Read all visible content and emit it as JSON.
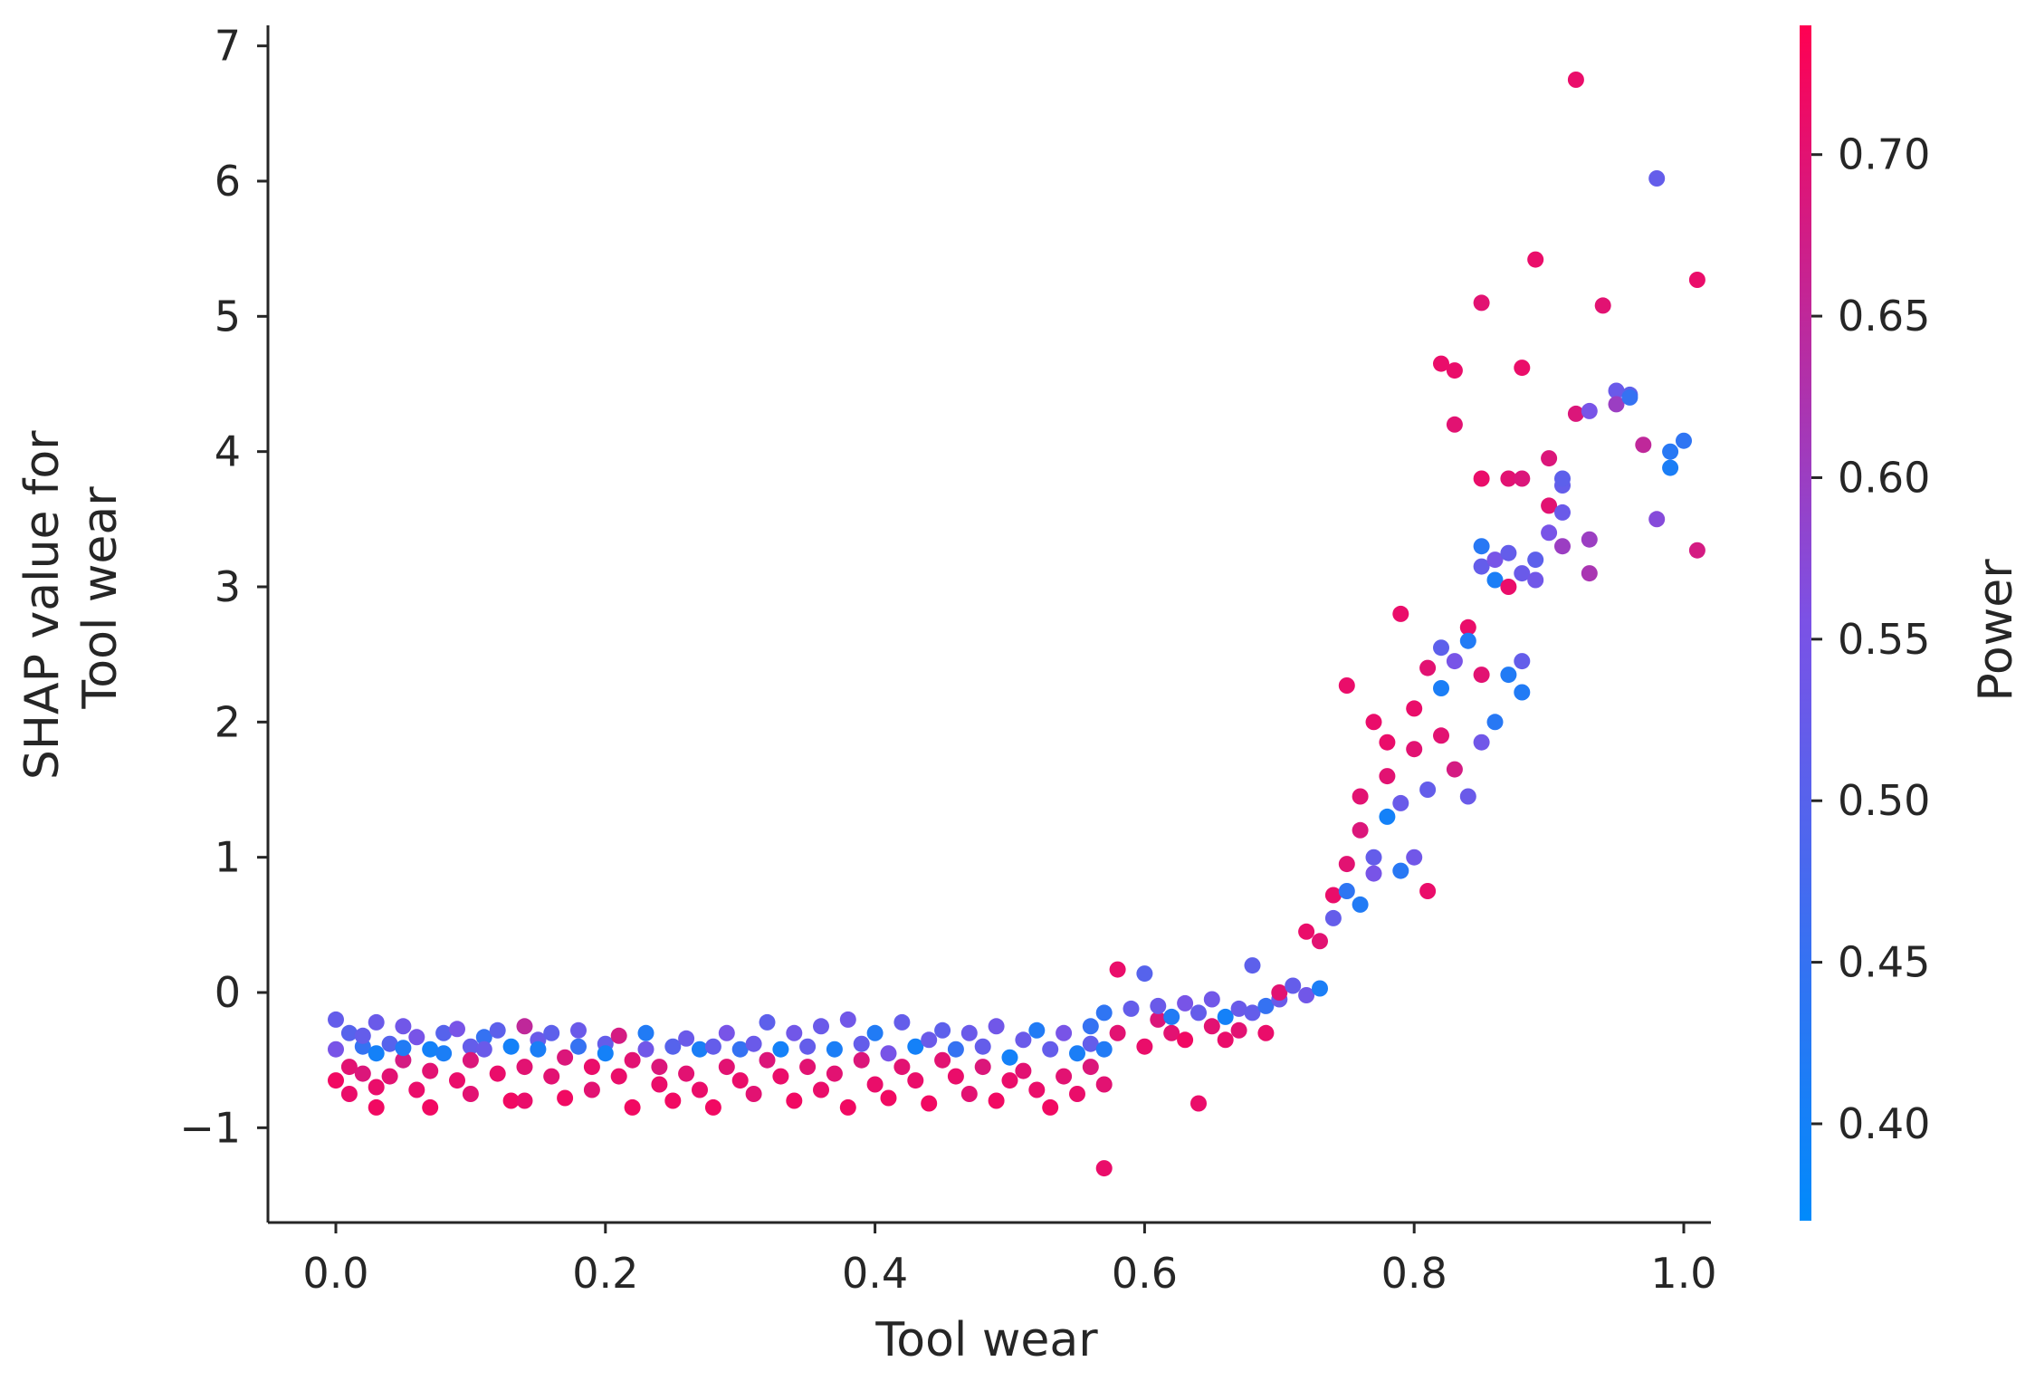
{
  "chart_data": {
    "type": "scatter",
    "title": "",
    "xlabel": "Tool wear",
    "ylabel_lines": [
      "SHAP value for",
      "Tool wear"
    ],
    "colorbar_label": "Power",
    "xlim": [
      -0.05,
      1.0
    ],
    "ylim": [
      -1.7,
      7.15
    ],
    "xticks": [
      0.0,
      0.2,
      0.4,
      0.6,
      0.8,
      1.0
    ],
    "xtick_labels": [
      "0.0",
      "0.2",
      "0.4",
      "0.6",
      "0.8",
      "1.0"
    ],
    "yticks": [
      -1,
      0,
      1,
      2,
      3,
      4,
      5,
      6,
      7
    ],
    "ytick_labels": [
      "−1",
      "0",
      "1",
      "2",
      "3",
      "4",
      "5",
      "6",
      "7"
    ],
    "colorbar_range": [
      0.37,
      0.74
    ],
    "colorbar_ticks": [
      0.4,
      0.45,
      0.5,
      0.55,
      0.6,
      0.65,
      0.7
    ],
    "colorbar_tick_labels": [
      "0.40",
      "0.45",
      "0.50",
      "0.55",
      "0.60",
      "0.65",
      "0.70"
    ],
    "colormap": [
      "#008afb",
      "#7b52e6",
      "#ff0052"
    ],
    "grid": false,
    "series": [
      {
        "points": [
          [
            0.0,
            -0.2,
            0.52
          ],
          [
            0.0,
            -0.42,
            0.55
          ],
          [
            0.0,
            -0.65,
            0.72
          ],
          [
            0.01,
            -0.3,
            0.5
          ],
          [
            0.01,
            -0.55,
            0.7
          ],
          [
            0.01,
            -0.75,
            0.71
          ],
          [
            0.02,
            -0.4,
            0.45
          ],
          [
            0.02,
            -0.6,
            0.69
          ],
          [
            0.02,
            -0.32,
            0.52
          ],
          [
            0.03,
            -0.7,
            0.71
          ],
          [
            0.03,
            -0.45,
            0.4
          ],
          [
            0.03,
            -0.22,
            0.53
          ],
          [
            0.03,
            -0.85,
            0.72
          ],
          [
            0.04,
            -0.38,
            0.5
          ],
          [
            0.04,
            -0.62,
            0.7
          ],
          [
            0.05,
            -0.25,
            0.54
          ],
          [
            0.05,
            -0.5,
            0.68
          ],
          [
            0.05,
            -0.41,
            0.42
          ],
          [
            0.06,
            -0.72,
            0.71
          ],
          [
            0.06,
            -0.33,
            0.55
          ],
          [
            0.07,
            -0.42,
            0.4
          ],
          [
            0.07,
            -0.58,
            0.7
          ],
          [
            0.07,
            -0.85,
            0.72
          ],
          [
            0.08,
            -0.3,
            0.5
          ],
          [
            0.08,
            -0.45,
            0.41
          ],
          [
            0.09,
            -0.27,
            0.55
          ],
          [
            0.09,
            -0.65,
            0.71
          ],
          [
            0.1,
            -0.4,
            0.52
          ],
          [
            0.1,
            -0.75,
            0.7
          ],
          [
            0.1,
            -0.5,
            0.69
          ],
          [
            0.11,
            -0.33,
            0.45
          ],
          [
            0.11,
            -0.42,
            0.53
          ],
          [
            0.12,
            -0.6,
            0.71
          ],
          [
            0.12,
            -0.28,
            0.51
          ],
          [
            0.13,
            -0.8,
            0.72
          ],
          [
            0.13,
            -0.4,
            0.4
          ],
          [
            0.14,
            -0.55,
            0.7
          ],
          [
            0.14,
            -0.25,
            0.65
          ],
          [
            0.14,
            -0.8,
            0.71
          ],
          [
            0.15,
            -0.35,
            0.53
          ],
          [
            0.15,
            -0.42,
            0.41
          ],
          [
            0.16,
            -0.62,
            0.7
          ],
          [
            0.16,
            -0.3,
            0.51
          ],
          [
            0.17,
            -0.48,
            0.69
          ],
          [
            0.17,
            -0.78,
            0.72
          ],
          [
            0.18,
            -0.4,
            0.45
          ],
          [
            0.18,
            -0.28,
            0.53
          ],
          [
            0.19,
            -0.55,
            0.71
          ],
          [
            0.19,
            -0.72,
            0.7
          ],
          [
            0.2,
            -0.38,
            0.52
          ],
          [
            0.2,
            -0.45,
            0.4
          ],
          [
            0.21,
            -0.62,
            0.71
          ],
          [
            0.21,
            -0.32,
            0.68
          ],
          [
            0.22,
            -0.85,
            0.72
          ],
          [
            0.22,
            -0.5,
            0.7
          ],
          [
            0.23,
            -0.3,
            0.42
          ],
          [
            0.23,
            -0.42,
            0.54
          ],
          [
            0.24,
            -0.68,
            0.71
          ],
          [
            0.24,
            -0.55,
            0.69
          ],
          [
            0.25,
            -0.4,
            0.5
          ],
          [
            0.25,
            -0.8,
            0.72
          ],
          [
            0.26,
            -0.34,
            0.53
          ],
          [
            0.26,
            -0.6,
            0.7
          ],
          [
            0.27,
            -0.42,
            0.41
          ],
          [
            0.27,
            -0.72,
            0.71
          ],
          [
            0.28,
            -0.85,
            0.72
          ],
          [
            0.28,
            -0.4,
            0.52
          ],
          [
            0.29,
            -0.55,
            0.7
          ],
          [
            0.29,
            -0.3,
            0.55
          ],
          [
            0.3,
            -0.65,
            0.71
          ],
          [
            0.3,
            -0.42,
            0.45
          ],
          [
            0.31,
            -0.75,
            0.7
          ],
          [
            0.31,
            -0.38,
            0.53
          ],
          [
            0.32,
            -0.5,
            0.69
          ],
          [
            0.32,
            -0.22,
            0.51
          ],
          [
            0.33,
            -0.62,
            0.71
          ],
          [
            0.33,
            -0.42,
            0.4
          ],
          [
            0.34,
            -0.8,
            0.72
          ],
          [
            0.34,
            -0.3,
            0.54
          ],
          [
            0.35,
            -0.55,
            0.7
          ],
          [
            0.35,
            -0.4,
            0.52
          ],
          [
            0.36,
            -0.72,
            0.71
          ],
          [
            0.36,
            -0.25,
            0.53
          ],
          [
            0.37,
            -0.6,
            0.7
          ],
          [
            0.37,
            -0.42,
            0.41
          ],
          [
            0.38,
            -0.85,
            0.72
          ],
          [
            0.38,
            -0.2,
            0.54
          ],
          [
            0.39,
            -0.5,
            0.69
          ],
          [
            0.39,
            -0.38,
            0.52
          ],
          [
            0.4,
            -0.68,
            0.71
          ],
          [
            0.4,
            -0.3,
            0.42
          ],
          [
            0.41,
            -0.45,
            0.55
          ],
          [
            0.41,
            -0.78,
            0.72
          ],
          [
            0.42,
            -0.55,
            0.7
          ],
          [
            0.42,
            -0.22,
            0.52
          ],
          [
            0.43,
            -0.4,
            0.4
          ],
          [
            0.43,
            -0.65,
            0.71
          ],
          [
            0.44,
            -0.35,
            0.53
          ],
          [
            0.44,
            -0.82,
            0.72
          ],
          [
            0.45,
            -0.5,
            0.7
          ],
          [
            0.45,
            -0.28,
            0.51
          ],
          [
            0.46,
            -0.62,
            0.71
          ],
          [
            0.46,
            -0.42,
            0.45
          ],
          [
            0.47,
            -0.75,
            0.7
          ],
          [
            0.47,
            -0.3,
            0.53
          ],
          [
            0.48,
            -0.55,
            0.69
          ],
          [
            0.48,
            -0.4,
            0.52
          ],
          [
            0.49,
            -0.8,
            0.72
          ],
          [
            0.49,
            -0.25,
            0.54
          ],
          [
            0.5,
            -0.48,
            0.4
          ],
          [
            0.5,
            -0.65,
            0.71
          ],
          [
            0.51,
            -0.35,
            0.53
          ],
          [
            0.51,
            -0.58,
            0.7
          ],
          [
            0.52,
            -0.28,
            0.42
          ],
          [
            0.52,
            -0.72,
            0.71
          ],
          [
            0.53,
            -0.42,
            0.52
          ],
          [
            0.53,
            -0.85,
            0.72
          ],
          [
            0.54,
            -0.3,
            0.55
          ],
          [
            0.54,
            -0.62,
            0.7
          ],
          [
            0.55,
            -0.45,
            0.41
          ],
          [
            0.55,
            -0.75,
            0.71
          ],
          [
            0.56,
            -0.38,
            0.52
          ],
          [
            0.56,
            -0.55,
            0.69
          ],
          [
            0.56,
            -0.25,
            0.45
          ],
          [
            0.57,
            -1.3,
            0.71
          ],
          [
            0.57,
            -0.68,
            0.7
          ],
          [
            0.57,
            -0.42,
            0.42
          ],
          [
            0.57,
            -0.15,
            0.44
          ],
          [
            0.58,
            0.17,
            0.71
          ],
          [
            0.58,
            -0.3,
            0.7
          ],
          [
            0.59,
            -0.12,
            0.52
          ],
          [
            0.6,
            0.14,
            0.5
          ],
          [
            0.6,
            -0.4,
            0.71
          ],
          [
            0.61,
            -0.2,
            0.69
          ],
          [
            0.61,
            -0.1,
            0.53
          ],
          [
            0.62,
            -0.3,
            0.7
          ],
          [
            0.62,
            -0.18,
            0.42
          ],
          [
            0.63,
            -0.08,
            0.55
          ],
          [
            0.63,
            -0.35,
            0.72
          ],
          [
            0.64,
            -0.15,
            0.52
          ],
          [
            0.64,
            -0.82,
            0.71
          ],
          [
            0.65,
            -0.25,
            0.7
          ],
          [
            0.65,
            -0.05,
            0.54
          ],
          [
            0.66,
            -0.18,
            0.4
          ],
          [
            0.66,
            -0.35,
            0.71
          ],
          [
            0.67,
            -0.12,
            0.53
          ],
          [
            0.67,
            -0.28,
            0.7
          ],
          [
            0.68,
            -0.15,
            0.52
          ],
          [
            0.68,
            0.2,
            0.51
          ],
          [
            0.69,
            -0.3,
            0.71
          ],
          [
            0.69,
            -0.1,
            0.45
          ],
          [
            0.7,
            -0.05,
            0.53
          ],
          [
            0.7,
            0.0,
            0.7
          ],
          [
            0.71,
            0.05,
            0.52
          ],
          [
            0.72,
            -0.02,
            0.54
          ],
          [
            0.72,
            0.45,
            0.71
          ],
          [
            0.73,
            0.38,
            0.7
          ],
          [
            0.73,
            0.03,
            0.41
          ],
          [
            0.74,
            0.72,
            0.71
          ],
          [
            0.74,
            0.55,
            0.52
          ],
          [
            0.75,
            0.75,
            0.44
          ],
          [
            0.75,
            0.95,
            0.7
          ],
          [
            0.75,
            2.27,
            0.71
          ],
          [
            0.76,
            1.2,
            0.69
          ],
          [
            0.76,
            1.45,
            0.7
          ],
          [
            0.76,
            0.65,
            0.42
          ],
          [
            0.77,
            1.0,
            0.52
          ],
          [
            0.77,
            2.0,
            0.71
          ],
          [
            0.77,
            0.88,
            0.55
          ],
          [
            0.78,
            1.3,
            0.4
          ],
          [
            0.78,
            1.6,
            0.7
          ],
          [
            0.78,
            1.85,
            0.71
          ],
          [
            0.79,
            2.8,
            0.71
          ],
          [
            0.79,
            1.4,
            0.53
          ],
          [
            0.79,
            0.9,
            0.43
          ],
          [
            0.8,
            1.8,
            0.7
          ],
          [
            0.8,
            2.1,
            0.71
          ],
          [
            0.8,
            1.0,
            0.54
          ],
          [
            0.81,
            1.5,
            0.52
          ],
          [
            0.81,
            2.4,
            0.7
          ],
          [
            0.81,
            0.75,
            0.71
          ],
          [
            0.82,
            2.25,
            0.41
          ],
          [
            0.82,
            1.9,
            0.7
          ],
          [
            0.82,
            2.55,
            0.51
          ],
          [
            0.82,
            4.65,
            0.71
          ],
          [
            0.83,
            4.2,
            0.7
          ],
          [
            0.83,
            4.6,
            0.71
          ],
          [
            0.83,
            2.45,
            0.55
          ],
          [
            0.83,
            1.65,
            0.68
          ],
          [
            0.84,
            2.7,
            0.71
          ],
          [
            0.84,
            1.45,
            0.53
          ],
          [
            0.84,
            2.6,
            0.42
          ],
          [
            0.85,
            3.3,
            0.43
          ],
          [
            0.85,
            3.8,
            0.71
          ],
          [
            0.85,
            5.1,
            0.7
          ],
          [
            0.85,
            3.15,
            0.52
          ],
          [
            0.85,
            2.35,
            0.7
          ],
          [
            0.85,
            1.85,
            0.54
          ],
          [
            0.86,
            3.05,
            0.41
          ],
          [
            0.86,
            3.2,
            0.55
          ],
          [
            0.86,
            2.0,
            0.43
          ],
          [
            0.87,
            3.0,
            0.71
          ],
          [
            0.87,
            3.25,
            0.52
          ],
          [
            0.87,
            3.8,
            0.7
          ],
          [
            0.87,
            2.35,
            0.42
          ],
          [
            0.88,
            4.62,
            0.71
          ],
          [
            0.88,
            3.8,
            0.69
          ],
          [
            0.88,
            3.1,
            0.53
          ],
          [
            0.88,
            2.45,
            0.52
          ],
          [
            0.88,
            2.22,
            0.42
          ],
          [
            0.89,
            5.42,
            0.71
          ],
          [
            0.89,
            3.2,
            0.51
          ],
          [
            0.89,
            3.05,
            0.54
          ],
          [
            0.9,
            3.6,
            0.7
          ],
          [
            0.9,
            3.95,
            0.69
          ],
          [
            0.9,
            3.4,
            0.55
          ],
          [
            0.91,
            3.75,
            0.52
          ],
          [
            0.91,
            3.55,
            0.53
          ],
          [
            0.91,
            3.8,
            0.51
          ],
          [
            0.91,
            3.3,
            0.6
          ],
          [
            0.92,
            6.75,
            0.71
          ],
          [
            0.92,
            4.28,
            0.69
          ],
          [
            0.93,
            4.3,
            0.55
          ],
          [
            0.93,
            3.35,
            0.6
          ],
          [
            0.93,
            3.1,
            0.62
          ],
          [
            0.94,
            5.08,
            0.7
          ],
          [
            0.95,
            4.45,
            0.53
          ],
          [
            0.95,
            4.35,
            0.6
          ],
          [
            0.96,
            4.42,
            0.51
          ],
          [
            0.96,
            4.4,
            0.45
          ],
          [
            0.97,
            4.05,
            0.65
          ],
          [
            0.98,
            6.02,
            0.52
          ],
          [
            0.98,
            3.5,
            0.57
          ],
          [
            0.99,
            3.88,
            0.41
          ],
          [
            0.99,
            4.0,
            0.43
          ],
          [
            1.0,
            4.08,
            0.44
          ],
          [
            1.01,
            5.27,
            0.71
          ],
          [
            1.01,
            3.27,
            0.68
          ]
        ]
      }
    ]
  }
}
